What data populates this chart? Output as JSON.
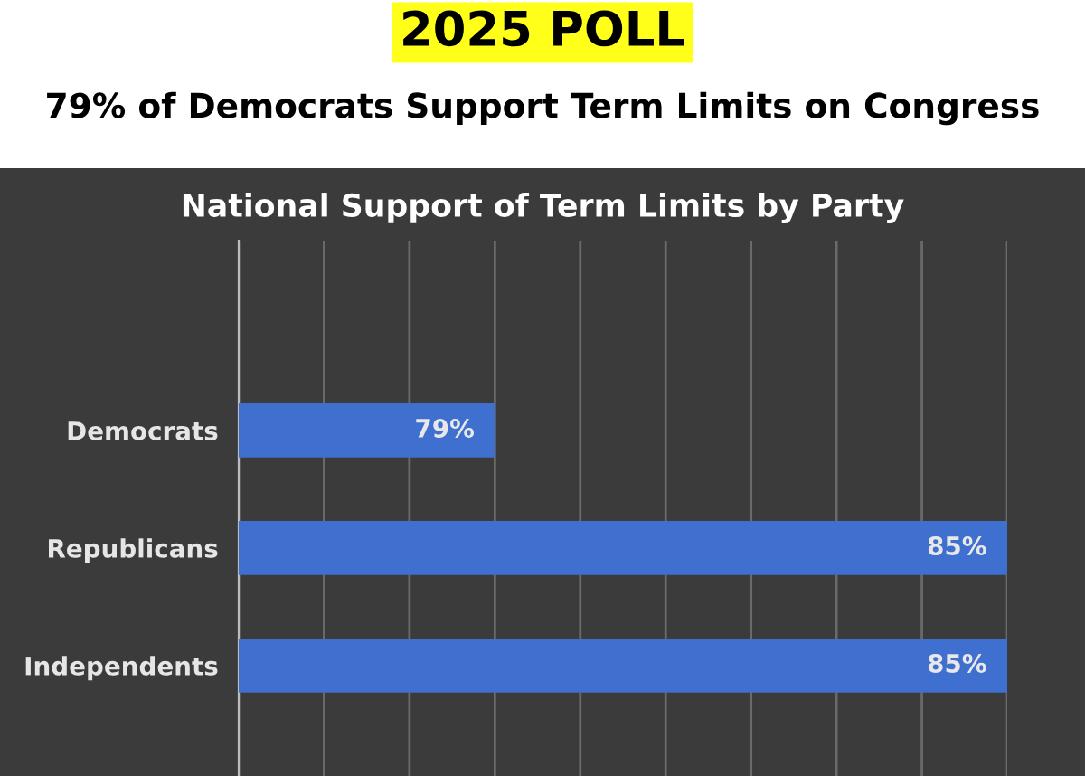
{
  "chart_data": {
    "type": "bar",
    "orientation": "horizontal",
    "title": "2025 POLL",
    "subtitle": "79% of Democrats Support Term Limits on Congress",
    "annotations": [
      "National Support of Term Limits by Party"
    ],
    "categories": [
      "Democrats",
      "Republicans",
      "Independents"
    ],
    "values": [
      79,
      85,
      85
    ],
    "value_labels": [
      "79%",
      "85%",
      "85%"
    ],
    "color": "#3f6fcf",
    "xlim": [
      76,
      85
    ],
    "xticks": [
      {
        "value": 76,
        "label": null
      },
      {
        "value": 77,
        "label": null
      },
      {
        "value": 78,
        "label": null
      },
      {
        "value": 79,
        "label": null
      },
      {
        "value": 80,
        "label": null
      },
      {
        "value": 81,
        "label": null
      },
      {
        "value": 82,
        "label": null
      },
      {
        "value": 83,
        "label": null
      },
      {
        "value": 84,
        "label": null
      },
      {
        "value": 85,
        "label": null
      }
    ],
    "grid": "x",
    "legend": false
  }
}
